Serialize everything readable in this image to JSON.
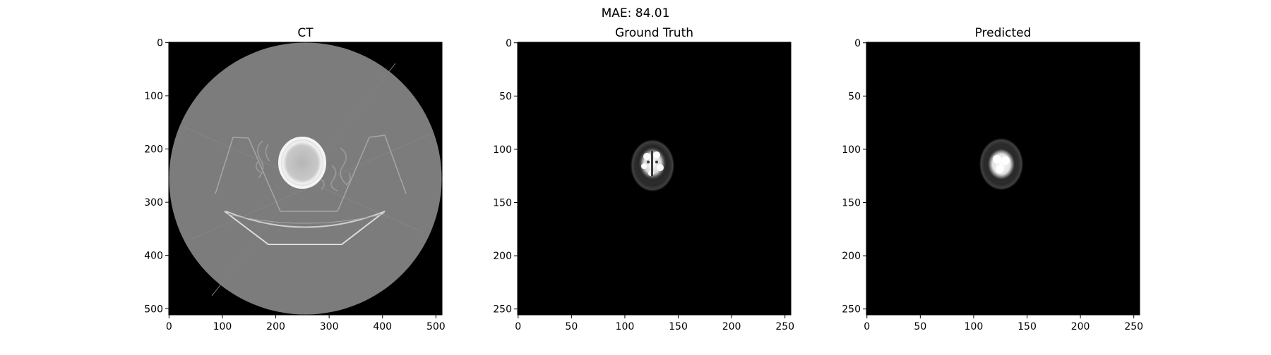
{
  "figure": {
    "suptitle": "MAE: 84.01"
  },
  "panels": [
    {
      "title": "CT",
      "size": 512,
      "xticks": [
        0,
        100,
        200,
        300,
        400,
        500
      ],
      "yticks": [
        0,
        100,
        200,
        300,
        400,
        500
      ],
      "image": "ct-slice"
    },
    {
      "title": "Ground Truth",
      "size": 256,
      "xticks": [
        0,
        50,
        100,
        150,
        200,
        250
      ],
      "yticks": [
        0,
        50,
        100,
        150,
        200,
        250
      ],
      "image": "ground-truth-slice"
    },
    {
      "title": "Predicted",
      "size": 256,
      "xticks": [
        0,
        50,
        100,
        150,
        200,
        250
      ],
      "yticks": [
        0,
        50,
        100,
        150,
        200,
        250
      ],
      "image": "predicted-slice"
    }
  ]
}
